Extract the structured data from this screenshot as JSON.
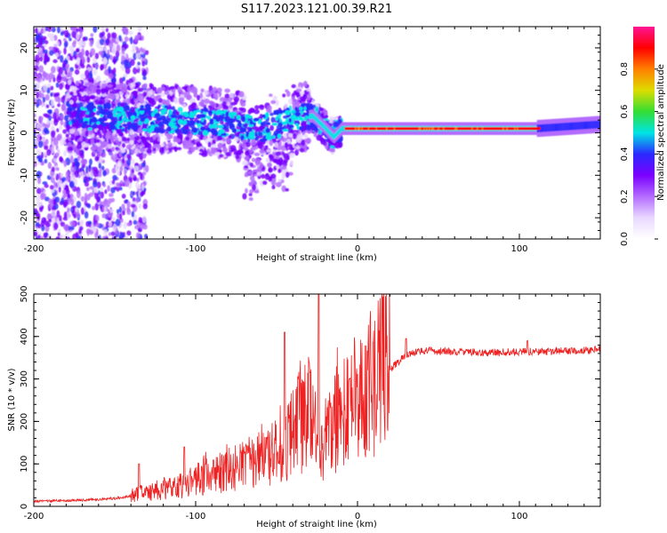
{
  "title": "S117.2023.121.00.39.R21",
  "colors": {
    "line": "#ee2222",
    "axis": "#000000",
    "colormap": [
      "#ffffff",
      "#e9d8ff",
      "#b46cff",
      "#7a00ff",
      "#2a2aff",
      "#00e5e5",
      "#33dd33",
      "#dddd00",
      "#ff7f00",
      "#ff0000",
      "#ff1493"
    ]
  },
  "chart_data": [
    {
      "type": "heatmap",
      "xlabel": "Height of straight line (km)",
      "ylabel": "Frequency (Hz)",
      "xlim": [
        -200,
        150
      ],
      "ylim": [
        -25,
        25
      ],
      "xticks": [
        -200,
        -100,
        0,
        100
      ],
      "yticks": [
        -20,
        -10,
        0,
        10,
        20
      ],
      "colorbar": {
        "label": "Normalized spectral amplitude",
        "range": [
          0,
          1
        ],
        "ticks": [
          "0.0",
          "0.2",
          "0.4",
          "0.6",
          "0.8"
        ]
      },
      "ridge": {
        "x": [
          -180,
          -140,
          -100,
          -80,
          -60,
          -40,
          -28,
          -20,
          -15,
          -10,
          0,
          20,
          60,
          110,
          150
        ],
        "f_hz": [
          4,
          3.5,
          3,
          2,
          1,
          3,
          4,
          1,
          -1,
          1,
          1,
          1,
          1,
          1,
          2
        ]
      }
    },
    {
      "type": "line",
      "xlabel": "Height of straight line (km)",
      "ylabel": "SNR (10 * v/v)",
      "xlim": [
        -200,
        150
      ],
      "ylim": [
        0,
        500
      ],
      "xticks": [
        -200,
        -100,
        0,
        100
      ],
      "yticks": [
        0,
        100,
        200,
        300,
        400,
        500
      ],
      "series": [
        {
          "envelope_x": [
            -200,
            -170,
            -150,
            -130,
            -110,
            -100,
            -80,
            -60,
            -45,
            -38,
            -30,
            -25,
            -22,
            -18,
            -10,
            0,
            10,
            20,
            30,
            40,
            60,
            80,
            100,
            120,
            150
          ],
          "envelope_y": [
            12,
            14,
            18,
            28,
            40,
            55,
            75,
            95,
            120,
            170,
            190,
            150,
            110,
            160,
            195,
            215,
            255,
            320,
            355,
            365,
            362,
            360,
            362,
            363,
            367
          ],
          "peaks": [
            [
              -135,
              100
            ],
            [
              -107,
              140
            ],
            [
              -45,
              410
            ],
            [
              -24,
              500
            ],
            [
              -5,
              300
            ],
            [
              30,
              395
            ],
            [
              105,
              390
            ]
          ]
        }
      ]
    }
  ]
}
